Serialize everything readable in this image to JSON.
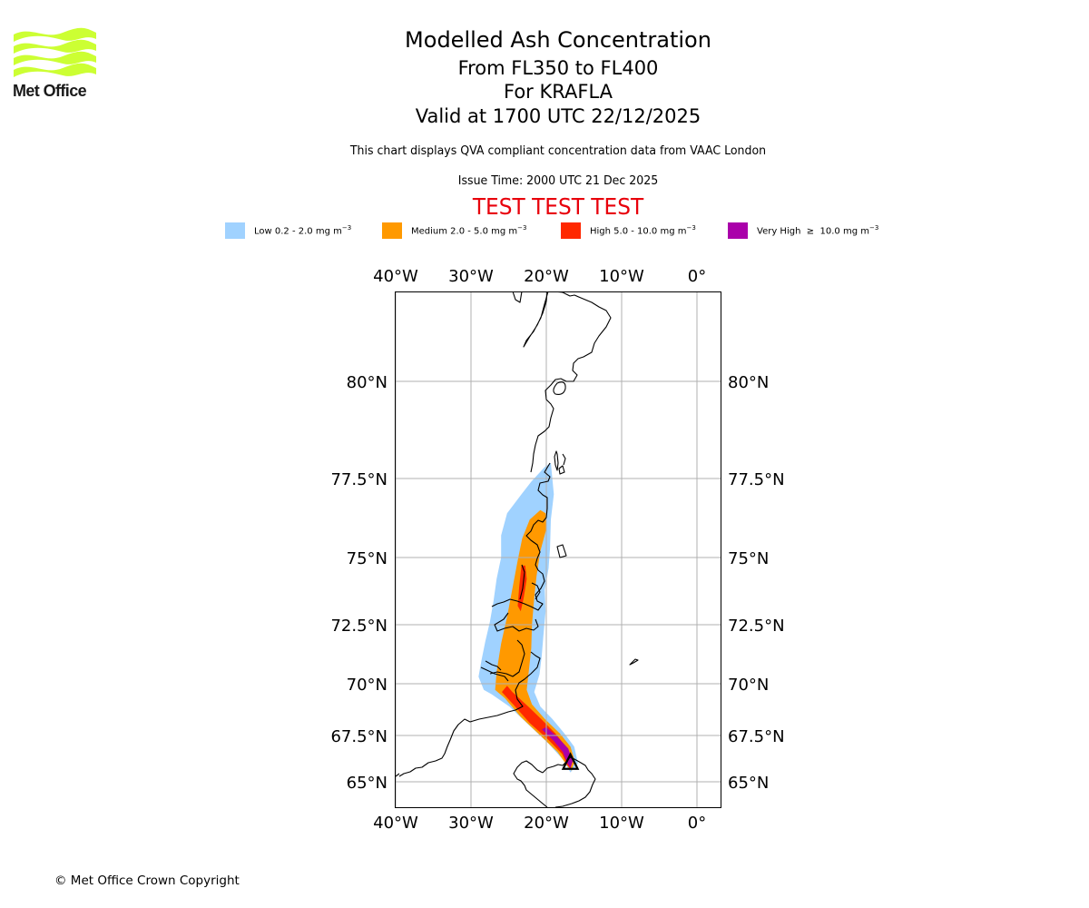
{
  "logo": {
    "text": "Met Office",
    "icon": "met-office-wave-logo",
    "color": "#ccff33"
  },
  "header": {
    "title": "Modelled Ash Concentration",
    "flight_levels": "From FL350 to FL400",
    "volcano": "For KRAFLA",
    "valid_time": "Valid at 1700 UTC 22/12/2025",
    "description": "This chart displays QVA compliant concentration data from VAAC London",
    "issue_time": "Issue Time: 2000 UTC 21 Dec 2025",
    "test_banner": "TEST TEST TEST",
    "test_banner_color": "#e8000b"
  },
  "legend": [
    {
      "label": "Low 0.2 - 2.0 mg m",
      "unit_exp": "−3",
      "color": "#a0d2ff"
    },
    {
      "label": "Medium 2.0 - 5.0 mg m",
      "unit_exp": "−3",
      "color": "#ff9900"
    },
    {
      "label": "High 5.0 - 10.0 mg m",
      "unit_exp": "−3",
      "color": "#ff2800"
    },
    {
      "label": "Very High  ≥  10.0 mg m",
      "unit_exp": "−3",
      "color": "#aa00aa"
    }
  ],
  "map": {
    "lon_ticks": [
      {
        "value": -40,
        "label": "40°W"
      },
      {
        "value": -30,
        "label": "30°W"
      },
      {
        "value": -20,
        "label": "20°W"
      },
      {
        "value": -10,
        "label": "10°W"
      },
      {
        "value": 0,
        "label": "0°"
      }
    ],
    "lat_ticks": [
      {
        "value": 80,
        "label": "80°N"
      },
      {
        "value": 77.5,
        "label": "77.5°N"
      },
      {
        "value": 75,
        "label": "75°N"
      },
      {
        "value": 72.5,
        "label": "72.5°N"
      },
      {
        "value": 70,
        "label": "70°N"
      },
      {
        "value": 67.5,
        "label": "67.5°N"
      },
      {
        "value": 65,
        "label": "65°N"
      }
    ],
    "extent": {
      "lon_min": -40,
      "lon_max": 3,
      "lat_min": 64.3,
      "lat_max": 82.2
    },
    "volcano_marker": {
      "name": "KRAFLA",
      "lon": -16.8,
      "lat": 65.7,
      "icon": "volcano-triangle"
    },
    "gridline_color": "#b0b0b0"
  },
  "chart_data": {
    "type": "map",
    "title": "Modelled Ash Concentration",
    "layers": [
      {
        "name": "Low",
        "range": "0.2 - 2.0 mg m-3",
        "color": "#a0d2ff",
        "polygon": [
          [
            -16.8,
            65.5
          ],
          [
            -15.8,
            66.0
          ],
          [
            -16.3,
            66.9
          ],
          [
            -17.6,
            67.6
          ],
          [
            -19.2,
            68.3
          ],
          [
            -20.8,
            68.9
          ],
          [
            -21.6,
            69.6
          ],
          [
            -20.9,
            70.4
          ],
          [
            -20.6,
            71.2
          ],
          [
            -20.4,
            72.0
          ],
          [
            -20.1,
            73.0
          ],
          [
            -20.2,
            73.8
          ],
          [
            -19.7,
            74.6
          ],
          [
            -19.5,
            75.3
          ],
          [
            -19.4,
            76.2
          ],
          [
            -19.0,
            77.0
          ],
          [
            -19.4,
            77.9
          ],
          [
            -20.2,
            77.8
          ],
          [
            -22.0,
            77.4
          ],
          [
            -23.3,
            77.0
          ],
          [
            -25.2,
            76.4
          ],
          [
            -26.0,
            75.7
          ],
          [
            -26.0,
            75.0
          ],
          [
            -26.6,
            74.2
          ],
          [
            -27.0,
            73.4
          ],
          [
            -27.5,
            72.6
          ],
          [
            -28.1,
            71.8
          ],
          [
            -28.6,
            71.0
          ],
          [
            -29.0,
            70.3
          ],
          [
            -28.3,
            69.7
          ],
          [
            -27.3,
            69.5
          ],
          [
            -24.9,
            68.9
          ],
          [
            -22.3,
            68.0
          ],
          [
            -19.8,
            67.1
          ],
          [
            -17.8,
            66.2
          ]
        ]
      },
      {
        "name": "Medium",
        "range": "2.0 - 5.0 mg m-3",
        "color": "#ff9900",
        "polygon": [
          [
            -16.7,
            65.6
          ],
          [
            -16.2,
            66.1
          ],
          [
            -16.8,
            66.9
          ],
          [
            -18.2,
            67.6
          ],
          [
            -20.2,
            68.3
          ],
          [
            -21.9,
            69.0
          ],
          [
            -22.6,
            69.7
          ],
          [
            -22.3,
            70.6
          ],
          [
            -22.0,
            71.5
          ],
          [
            -21.9,
            72.5
          ],
          [
            -21.6,
            73.5
          ],
          [
            -21.3,
            74.3
          ],
          [
            -20.8,
            75.2
          ],
          [
            -20.0,
            75.9
          ],
          [
            -20.1,
            76.4
          ],
          [
            -20.8,
            76.5
          ],
          [
            -22.2,
            76.2
          ],
          [
            -23.2,
            75.6
          ],
          [
            -23.8,
            74.9
          ],
          [
            -24.4,
            74.0
          ],
          [
            -25.2,
            72.8
          ],
          [
            -26.0,
            71.7
          ],
          [
            -26.6,
            70.5
          ],
          [
            -26.8,
            69.7
          ],
          [
            -25.5,
            69.3
          ],
          [
            -23.4,
            68.4
          ],
          [
            -20.8,
            67.5
          ],
          [
            -18.5,
            66.6
          ],
          [
            -17.3,
            65.9
          ]
        ]
      },
      {
        "name": "High",
        "range": "5.0 - 10.0 mg m-3",
        "color": "#ff2800",
        "polygon": [
          [
            -16.8,
            65.7
          ],
          [
            -16.6,
            66.1
          ],
          [
            -17.2,
            66.8
          ],
          [
            -18.8,
            67.6
          ],
          [
            -20.7,
            68.3
          ],
          [
            -22.4,
            68.9
          ],
          [
            -24.5,
            69.6
          ],
          [
            -25.2,
            69.9
          ],
          [
            -25.9,
            69.6
          ],
          [
            -24.4,
            69.0
          ],
          [
            -22.2,
            68.1
          ],
          [
            -19.8,
            67.3
          ],
          [
            -17.9,
            66.5
          ],
          [
            -17.2,
            65.9
          ]
        ]
      },
      {
        "name": "High (north streak)",
        "range": "5.0 - 10.0 mg m-3",
        "color": "#ff2800",
        "polygon": [
          [
            -22.8,
            74.7
          ],
          [
            -22.6,
            74.2
          ],
          [
            -23.0,
            73.5
          ],
          [
            -23.4,
            73.0
          ],
          [
            -23.8,
            73.2
          ],
          [
            -23.6,
            73.9
          ],
          [
            -23.3,
            74.7
          ]
        ]
      },
      {
        "name": "Very High",
        "range": "≥ 10.0 mg m-3",
        "color": "#aa00aa",
        "polygon": [
          [
            -16.8,
            65.75
          ],
          [
            -16.5,
            66.1
          ],
          [
            -17.1,
            66.8
          ],
          [
            -18.5,
            67.4
          ],
          [
            -20.0,
            67.9
          ],
          [
            -20.6,
            67.8
          ],
          [
            -19.0,
            67.2
          ],
          [
            -17.8,
            66.6
          ],
          [
            -17.2,
            66.0
          ]
        ]
      }
    ]
  },
  "footer": {
    "copyright": "© Met Office Crown Copyright"
  }
}
